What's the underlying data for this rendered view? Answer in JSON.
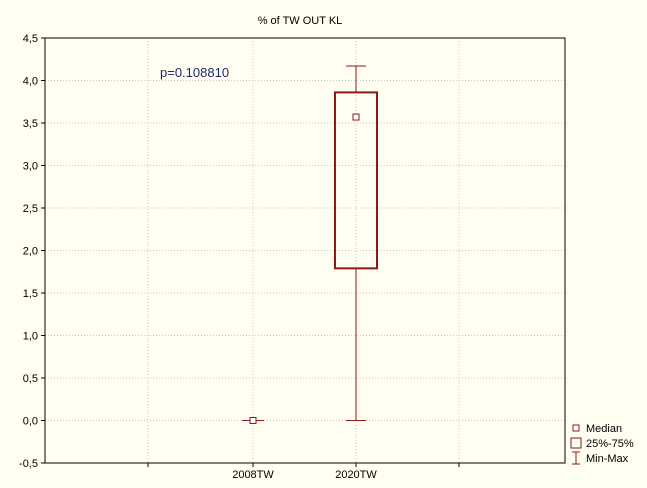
{
  "chart_data": {
    "type": "boxplot",
    "title": "% of TW OUT KL",
    "xlabel": "",
    "ylabel": "",
    "ylim": [
      -0.5,
      4.5
    ],
    "yticks": [
      -0.5,
      0.0,
      0.5,
      1.0,
      1.5,
      2.0,
      2.5,
      3.0,
      3.5,
      4.0,
      4.5
    ],
    "ytick_labels": [
      "-0,5",
      "0,0",
      "0,5",
      "1,0",
      "1,5",
      "2,0",
      "2,5",
      "3,0",
      "3,5",
      "4,0",
      "4,5"
    ],
    "categories": [
      "2008TW",
      "2020TW"
    ],
    "boxes": [
      {
        "category": "2008TW",
        "min": 0.0,
        "q1": 0.0,
        "median": 0.0,
        "q3": 0.0,
        "max": 0.0
      },
      {
        "category": "2020TW",
        "min": 0.0,
        "q1": 1.79,
        "median": 3.57,
        "q3": 3.86,
        "max": 4.17
      }
    ],
    "annotation": "p=0.108810",
    "legend": [
      "Median",
      "25%-75%",
      "Min-Max"
    ],
    "legend_position": "bottom-right",
    "colors": {
      "box": "#8B1A1A",
      "background": "#FFFEF0",
      "grid": "#C8C8C8",
      "annotation": "#1F2A6B"
    },
    "grid": true
  }
}
